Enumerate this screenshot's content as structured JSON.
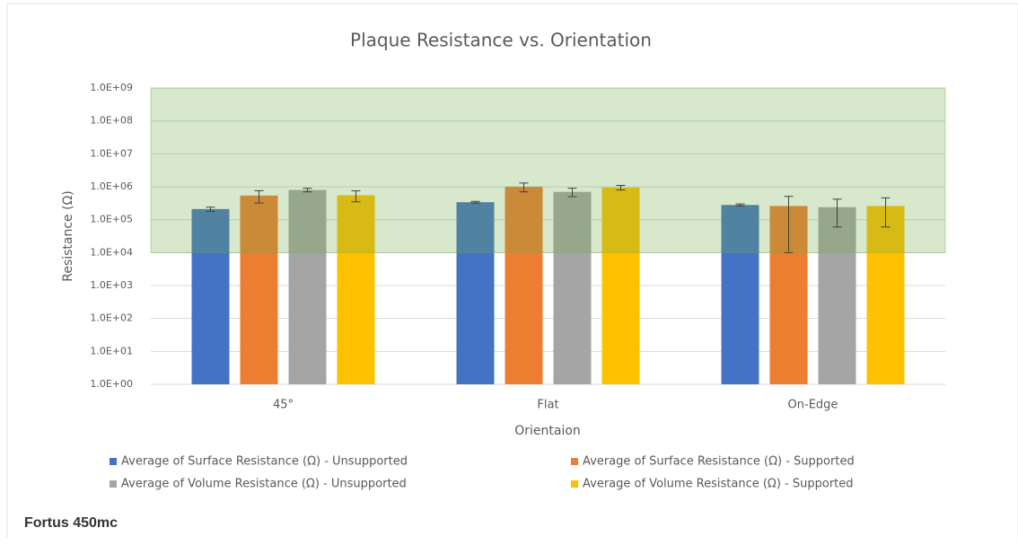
{
  "chart_data": {
    "type": "bar",
    "title": "Plaque Resistance vs. Orientation",
    "x_label": "Orientaion",
    "y_label": "Resistance (Ω)",
    "categories": [
      "45°",
      "Flat",
      "On-Edge"
    ],
    "log_scale": true,
    "grid": true,
    "ylim": [
      1,
      1000000000
    ],
    "yticks": [
      {
        "value": 1,
        "label": "1.0E+00"
      },
      {
        "value": 10,
        "label": "1.0E+01"
      },
      {
        "value": 100,
        "label": "1.0E+02"
      },
      {
        "value": 1000,
        "label": "1.0E+03"
      },
      {
        "value": 10000,
        "label": "1.0E+04"
      },
      {
        "value": 100000,
        "label": "1.0E+05"
      },
      {
        "value": 1000000,
        "label": "1.0E+06"
      },
      {
        "value": 10000000,
        "label": "1.0E+07"
      },
      {
        "value": 100000000,
        "label": "1.0E+08"
      },
      {
        "value": 1000000000,
        "label": "1.0E+09"
      }
    ],
    "shaded_range": [
      10000,
      1000000000
    ],
    "shaded_color": "#70ad47",
    "series": [
      {
        "name": "Average of Surface Resistance (Ω) - Unsupported",
        "color": "#4472c4",
        "values": [
          210000,
          340000,
          280000
        ],
        "errors": [
          30000,
          20000,
          20000
        ]
      },
      {
        "name": "Average of Surface Resistance (Ω) - Supported",
        "color": "#ed7d31",
        "values": [
          540000,
          1000000,
          260000
        ],
        "errors": [
          220000,
          300000,
          250000
        ]
      },
      {
        "name": "Average of Volume Resistance (Ω) - Unsupported",
        "color": "#a5a5a5",
        "values": [
          800000,
          700000,
          240000
        ],
        "errors": [
          100000,
          200000,
          180000
        ]
      },
      {
        "name": "Average of Volume Resistance (Ω) - Supported",
        "color": "#ffc000",
        "values": [
          550000,
          950000,
          260000
        ],
        "errors": [
          200000,
          150000,
          200000
        ]
      }
    ]
  },
  "caption": "Fortus 450mc"
}
